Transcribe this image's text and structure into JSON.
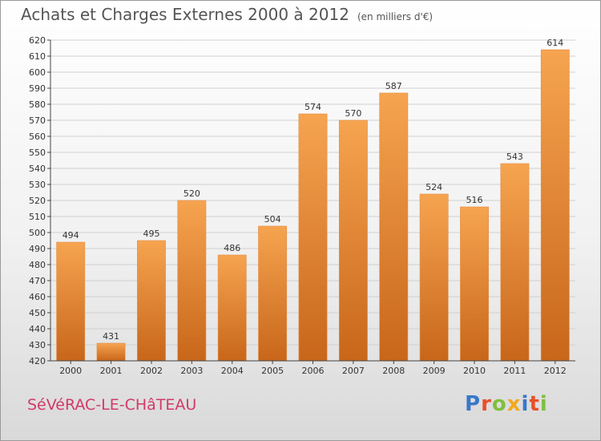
{
  "header": {
    "title": "Achats et Charges Externes 2000 à 2012",
    "unit": "(en milliers d'€)"
  },
  "footer": {
    "city": "SéVéRAC-LE-CHâTEAU",
    "logo": "Proxiti",
    "logo_colors": [
      "#3a78c8",
      "#e8502a",
      "#7fbf3f",
      "#f2a81d",
      "#3a78c8",
      "#e8502a",
      "#7fbf3f"
    ]
  },
  "colors": {
    "bar_top": "#f6a450",
    "bar_bottom": "#c8661a",
    "grid": "#d0d0d0",
    "title": "#555555",
    "city": "#d23a68"
  },
  "chart_data": {
    "type": "bar",
    "title": "Achats et Charges Externes 2000 à 2012",
    "subtitle": "(en milliers d'€)",
    "xlabel": "",
    "ylabel": "",
    "categories": [
      "2000",
      "2001",
      "2002",
      "2003",
      "2004",
      "2005",
      "2006",
      "2007",
      "2008",
      "2009",
      "2010",
      "2011",
      "2012"
    ],
    "values": [
      494,
      431,
      495,
      520,
      486,
      504,
      574,
      570,
      587,
      524,
      516,
      543,
      614
    ],
    "ylim": [
      420,
      620
    ],
    "yticks": [
      420,
      430,
      440,
      450,
      460,
      470,
      480,
      490,
      500,
      510,
      520,
      530,
      540,
      550,
      560,
      570,
      580,
      590,
      600,
      610,
      620
    ],
    "grid": true,
    "legend": "none"
  }
}
